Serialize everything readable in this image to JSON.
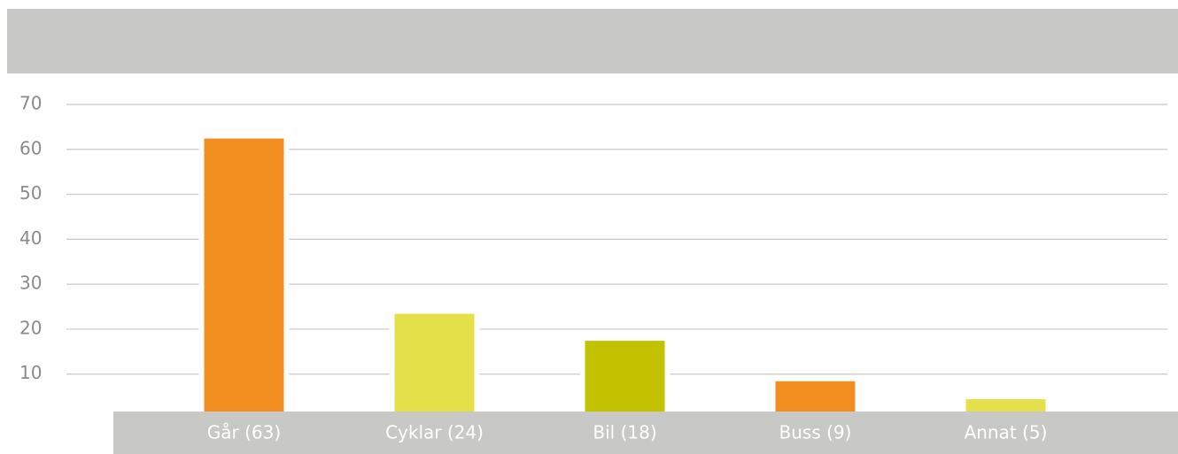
{
  "chart_data": {
    "type": "bar",
    "categories": [
      "Går (63)",
      "Cyklar (24)",
      "Bil (18)",
      "Buss (9)",
      "Annat (5)"
    ],
    "values": [
      63,
      24,
      18,
      9,
      5
    ],
    "colors": [
      "#f28e1f",
      "#e3e04a",
      "#c2c200",
      "#f28e1f",
      "#e3e04a"
    ],
    "ylim": [
      0,
      70
    ],
    "yticks": [
      10,
      20,
      30,
      40,
      50,
      60,
      70
    ],
    "grid": true
  }
}
